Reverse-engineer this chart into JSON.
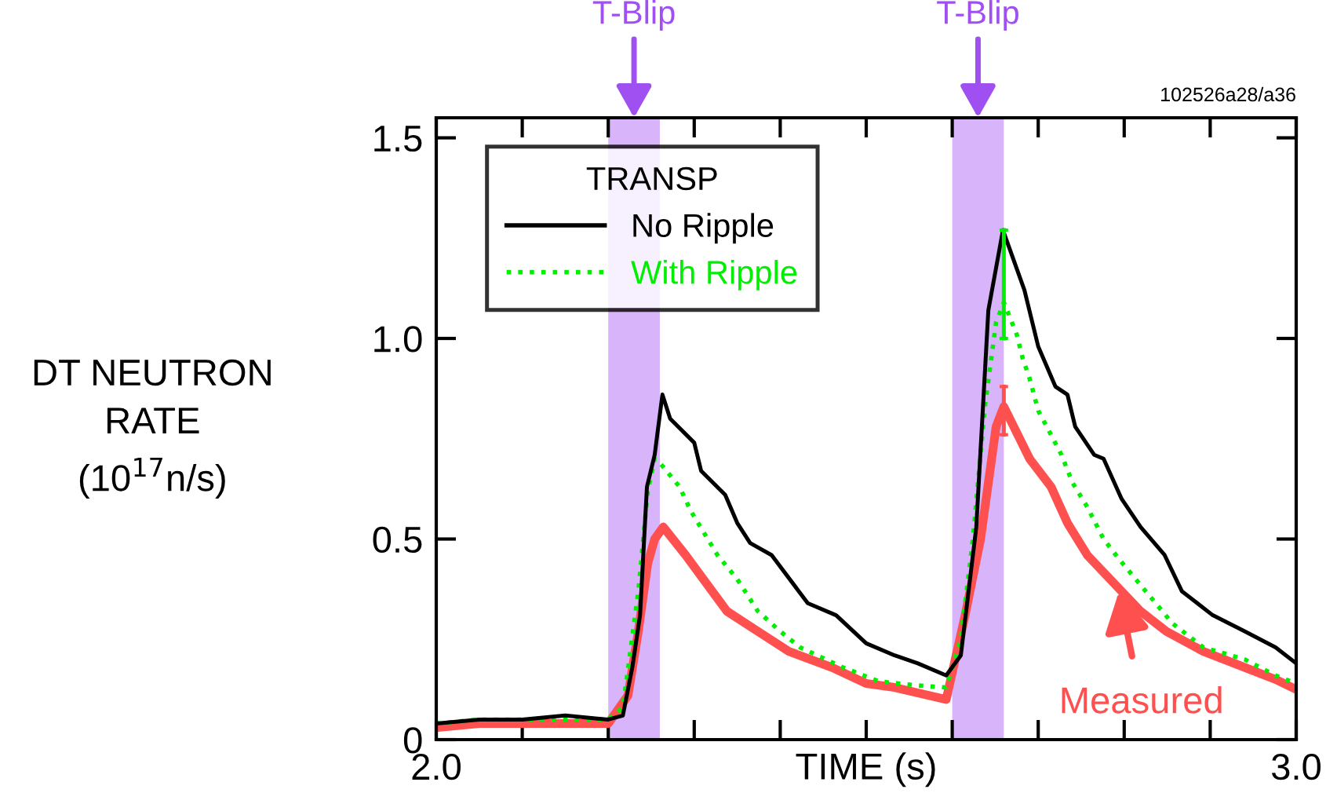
{
  "chart_data": {
    "type": "line",
    "xlabel": "TIME (s)",
    "ylabel": "DT NEUTRON\nRATE\n(10$^{17}$n/s)",
    "legend_title": "TRANSP",
    "legend": "top left",
    "grid": false,
    "xlim": [
      2.0,
      3.0
    ],
    "ylim": [
      0,
      1.55
    ],
    "xticks": [
      {
        "value": 2.0,
        "label": "2.0"
      },
      {
        "value": 2.1,
        "label": null
      },
      {
        "value": 2.2,
        "label": null
      },
      {
        "value": 2.3,
        "label": null
      },
      {
        "value": 2.4,
        "label": null
      },
      {
        "value": 2.5,
        "label": null
      },
      {
        "value": 2.6,
        "label": null
      },
      {
        "value": 2.7,
        "label": null
      },
      {
        "value": 2.8,
        "label": null
      },
      {
        "value": 2.9,
        "label": null
      },
      {
        "value": 3.0,
        "label": "3.0"
      }
    ],
    "yticks": [
      0,
      0.5,
      {
        "value": 1.0,
        "label": "1.0"
      },
      1.5
    ],
    "series": [
      {
        "name": "No Ripple",
        "color": "#000000",
        "line_style": "solid",
        "x": [
          2.0,
          2.05,
          2.1,
          2.15,
          2.2,
          2.217,
          2.228,
          2.237,
          2.245,
          2.254,
          2.263,
          2.272,
          2.3,
          2.308,
          2.336,
          2.35,
          2.365,
          2.39,
          2.432,
          2.465,
          2.5,
          2.533,
          2.56,
          2.593,
          2.61,
          2.628,
          2.642,
          2.659,
          2.684,
          2.7,
          2.72,
          2.734,
          2.743,
          2.765,
          2.776,
          2.797,
          2.819,
          2.847,
          2.867,
          2.903,
          2.94,
          2.976,
          3.0
        ],
        "values": [
          0.04,
          0.05,
          0.05,
          0.06,
          0.05,
          0.06,
          0.18,
          0.31,
          0.63,
          0.71,
          0.86,
          0.8,
          0.74,
          0.67,
          0.61,
          0.54,
          0.49,
          0.46,
          0.34,
          0.31,
          0.24,
          0.21,
          0.19,
          0.16,
          0.21,
          0.53,
          1.07,
          1.27,
          1.12,
          0.98,
          0.88,
          0.86,
          0.78,
          0.71,
          0.7,
          0.6,
          0.53,
          0.46,
          0.37,
          0.31,
          0.27,
          0.23,
          0.19
        ]
      },
      {
        "name": "With Ripple",
        "color": "#00ee00",
        "line_style": "dotted",
        "x": [
          2.0,
          2.05,
          2.1,
          2.15,
          2.2,
          2.217,
          2.235,
          2.246,
          2.254,
          2.26,
          2.283,
          2.296,
          2.327,
          2.35,
          2.374,
          2.4,
          2.423,
          2.473,
          2.515,
          2.56,
          2.593,
          2.61,
          2.624,
          2.638,
          2.651,
          2.66,
          2.675,
          2.682,
          2.69,
          2.7,
          2.71,
          2.727,
          2.74,
          2.757,
          2.776,
          2.794,
          2.825,
          2.856,
          2.892,
          2.94,
          2.976,
          3.0
        ],
        "values": [
          0.04,
          0.05,
          0.05,
          0.05,
          0.05,
          0.08,
          0.37,
          0.62,
          0.7,
          0.69,
          0.63,
          0.57,
          0.46,
          0.4,
          0.32,
          0.27,
          0.23,
          0.18,
          0.145,
          0.135,
          0.13,
          0.25,
          0.5,
          0.83,
          1.04,
          1.09,
          1.01,
          0.95,
          0.9,
          0.82,
          0.78,
          0.71,
          0.64,
          0.58,
          0.5,
          0.45,
          0.37,
          0.29,
          0.23,
          0.2,
          0.16,
          0.14
        ],
        "errors": [
          null,
          null,
          null,
          null,
          null,
          null,
          null,
          null,
          null,
          null,
          null,
          null,
          null,
          null,
          null,
          null,
          null,
          null,
          null,
          null,
          null,
          null,
          null,
          null,
          null,
          [
            1.0,
            1.27
          ],
          null,
          null,
          null,
          null,
          null,
          null,
          null,
          null,
          null,
          null,
          null,
          null,
          null,
          null,
          null,
          null
        ]
      },
      {
        "color": "#ff5050",
        "line_style": "solid",
        "x": [
          2.0,
          2.05,
          2.1,
          2.15,
          2.2,
          2.223,
          2.235,
          2.246,
          2.254,
          2.264,
          2.29,
          2.314,
          2.338,
          2.374,
          2.41,
          2.46,
          2.5,
          2.533,
          2.593,
          2.615,
          2.633,
          2.651,
          2.66,
          2.69,
          2.715,
          2.734,
          2.757,
          2.788,
          2.819,
          2.849,
          2.892,
          2.94,
          2.976,
          3.0
        ],
        "values": [
          0.03,
          0.04,
          0.04,
          0.04,
          0.04,
          0.11,
          0.27,
          0.44,
          0.5,
          0.53,
          0.46,
          0.39,
          0.32,
          0.27,
          0.22,
          0.18,
          0.14,
          0.13,
          0.1,
          0.31,
          0.5,
          0.78,
          0.83,
          0.7,
          0.63,
          0.54,
          0.46,
          0.39,
          0.32,
          0.27,
          0.22,
          0.18,
          0.15,
          0.125
        ],
        "errors": [
          null,
          null,
          null,
          null,
          null,
          null,
          null,
          null,
          null,
          null,
          null,
          null,
          null,
          null,
          null,
          null,
          null,
          null,
          null,
          null,
          null,
          null,
          [
            0.76,
            0.88
          ],
          null,
          null,
          null,
          null,
          null,
          null,
          null,
          null,
          null,
          null,
          null
        ]
      }
    ],
    "bands": [
      {
        "axis": "x",
        "from": 2.2,
        "to": 2.26,
        "label": "T-Blip",
        "color": "#d8b4fa"
      },
      {
        "axis": "x",
        "from": 2.6,
        "to": 2.66,
        "label": "T-Blip",
        "color": "#d8b4fa"
      }
    ],
    "annotations": [
      {
        "text": "Measured",
        "x": 2.794,
        "y": 0.37
      },
      "102526a28/a36"
    ]
  }
}
